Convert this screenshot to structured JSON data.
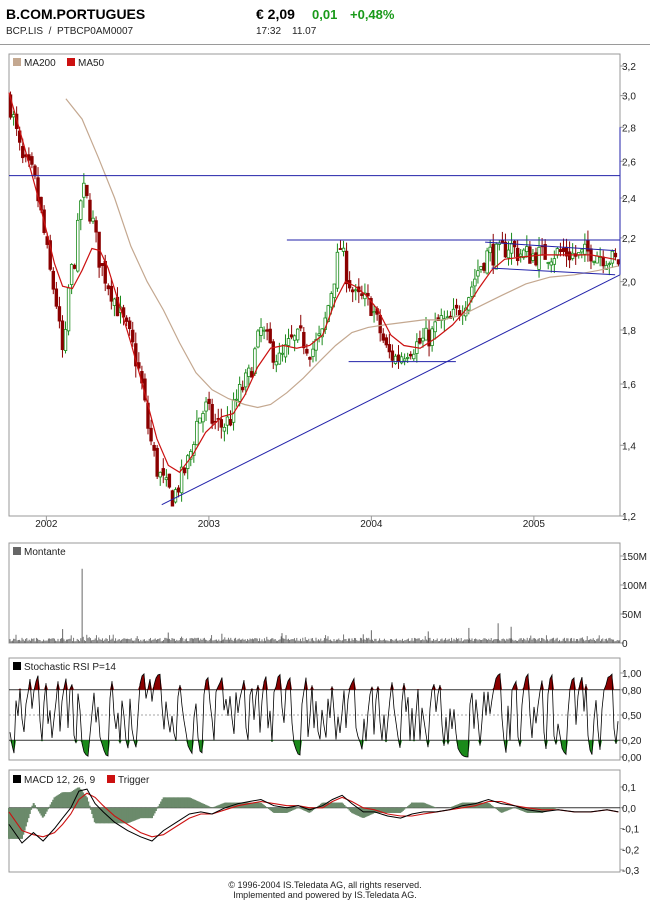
{
  "header": {
    "name": "B.COM.PORTUGUES",
    "ticker": "BCP.LIS",
    "separator": "/",
    "isin": "PTBCP0AM0007",
    "price": "€ 2,09",
    "change": "0,01",
    "change_pct": "+0,48%",
    "time": "17:32",
    "date": "11.07"
  },
  "colors": {
    "up_candle": "#1a8a1a",
    "down_candle": "#8b0000",
    "ma200": "#c4a890",
    "ma50": "#cc1111",
    "trendline": "#2222aa",
    "volume": "#666666",
    "rsi_overbought": "#8b0000",
    "rsi_oversold": "#1a8a1a",
    "macd": "#000000",
    "trigger": "#cc1111",
    "histogram": "#6b8a6b"
  },
  "footer": {
    "line1": "© 1996-2004 IS.Teledata AG, all rights reserved.",
    "line2": "Implemented and powered by IS.Teledata AG."
  },
  "chart_data": [
    {
      "id": "price",
      "type": "candlestick",
      "legend": [
        {
          "name": "MA200",
          "color": "#c4a890"
        },
        {
          "name": "MA50",
          "color": "#cc1111"
        }
      ],
      "x_ticks": [
        {
          "label": "2002",
          "t": 2002.0
        },
        {
          "label": "2003",
          "t": 2003.0
        },
        {
          "label": "2004",
          "t": 2004.0
        },
        {
          "label": "2005",
          "t": 2005.0
        }
      ],
      "x_range": [
        2001.77,
        2005.53
      ],
      "y_scale": "log",
      "ylim": [
        1.2,
        3.2
      ],
      "y_ticks": [
        "1,2",
        "1,4",
        "1,6",
        "1,8",
        "2,0",
        "2,2",
        "2,4",
        "2,6",
        "2,8",
        "3,0",
        "3,2"
      ],
      "close_path": [
        [
          2001.77,
          2.98
        ],
        [
          2001.85,
          2.6
        ],
        [
          2001.92,
          2.52
        ],
        [
          2001.97,
          2.3
        ],
        [
          2002.02,
          2.05
        ],
        [
          2002.06,
          1.92
        ],
        [
          2002.09,
          1.74
        ],
        [
          2002.11,
          1.68
        ],
        [
          2002.14,
          2.0
        ],
        [
          2002.18,
          2.12
        ],
        [
          2002.22,
          2.46
        ],
        [
          2002.28,
          2.3
        ],
        [
          2002.33,
          2.08
        ],
        [
          2002.4,
          1.96
        ],
        [
          2002.46,
          1.85
        ],
        [
          2002.52,
          1.76
        ],
        [
          2002.58,
          1.62
        ],
        [
          2002.63,
          1.44
        ],
        [
          2002.68,
          1.33
        ],
        [
          2002.73,
          1.28
        ],
        [
          2002.78,
          1.25
        ],
        [
          2002.83,
          1.3
        ],
        [
          2002.88,
          1.36
        ],
        [
          2002.93,
          1.48
        ],
        [
          2002.98,
          1.52
        ],
        [
          2003.03,
          1.47
        ],
        [
          2003.08,
          1.46
        ],
        [
          2003.13,
          1.48
        ],
        [
          2003.18,
          1.56
        ],
        [
          2003.25,
          1.63
        ],
        [
          2003.32,
          1.8
        ],
        [
          2003.38,
          1.73
        ],
        [
          2003.44,
          1.68
        ],
        [
          2003.5,
          1.75
        ],
        [
          2003.57,
          1.77
        ],
        [
          2003.63,
          1.72
        ],
        [
          2003.7,
          1.78
        ],
        [
          2003.77,
          2.02
        ],
        [
          2003.81,
          2.16
        ],
        [
          2003.85,
          2.03
        ],
        [
          2003.9,
          1.93
        ],
        [
          2003.95,
          1.92
        ],
        [
          2004.0,
          1.9
        ],
        [
          2004.05,
          1.8
        ],
        [
          2004.1,
          1.71
        ],
        [
          2004.16,
          1.69
        ],
        [
          2004.22,
          1.73
        ],
        [
          2004.3,
          1.75
        ],
        [
          2004.37,
          1.78
        ],
        [
          2004.42,
          1.84
        ],
        [
          2004.47,
          1.82
        ],
        [
          2004.53,
          1.87
        ],
        [
          2004.6,
          1.95
        ],
        [
          2004.66,
          2.06
        ],
        [
          2004.72,
          2.13
        ],
        [
          2004.78,
          2.12
        ],
        [
          2004.85,
          2.17
        ],
        [
          2004.9,
          2.13
        ],
        [
          2004.98,
          2.12
        ],
        [
          2005.05,
          2.12
        ],
        [
          2005.12,
          2.13
        ],
        [
          2005.2,
          2.13
        ],
        [
          2005.28,
          2.11
        ],
        [
          2005.35,
          2.14
        ],
        [
          2005.42,
          2.12
        ],
        [
          2005.5,
          2.09
        ]
      ],
      "ma50": [
        [
          2001.77,
          3.02
        ],
        [
          2001.86,
          2.7
        ],
        [
          2001.95,
          2.4
        ],
        [
          2002.05,
          2.08
        ],
        [
          2002.1,
          1.98
        ],
        [
          2002.16,
          1.97
        ],
        [
          2002.22,
          2.05
        ],
        [
          2002.28,
          2.15
        ],
        [
          2002.33,
          2.14
        ],
        [
          2002.38,
          2.06
        ],
        [
          2002.45,
          1.9
        ],
        [
          2002.52,
          1.75
        ],
        [
          2002.6,
          1.58
        ],
        [
          2002.68,
          1.42
        ],
        [
          2002.75,
          1.34
        ],
        [
          2002.82,
          1.32
        ],
        [
          2002.9,
          1.37
        ],
        [
          2002.98,
          1.44
        ],
        [
          2003.08,
          1.49
        ],
        [
          2003.15,
          1.5
        ],
        [
          2003.22,
          1.56
        ],
        [
          2003.3,
          1.66
        ],
        [
          2003.38,
          1.73
        ],
        [
          2003.46,
          1.74
        ],
        [
          2003.54,
          1.73
        ],
        [
          2003.62,
          1.74
        ],
        [
          2003.7,
          1.78
        ],
        [
          2003.78,
          1.92
        ],
        [
          2003.84,
          2.0
        ],
        [
          2003.9,
          1.98
        ],
        [
          2003.97,
          1.94
        ],
        [
          2004.04,
          1.88
        ],
        [
          2004.12,
          1.78
        ],
        [
          2004.2,
          1.74
        ],
        [
          2004.3,
          1.73
        ],
        [
          2004.4,
          1.77
        ],
        [
          2004.5,
          1.82
        ],
        [
          2004.58,
          1.88
        ],
        [
          2004.66,
          1.97
        ],
        [
          2004.74,
          2.05
        ],
        [
          2004.82,
          2.1
        ],
        [
          2004.92,
          2.11
        ],
        [
          2005.05,
          2.12
        ],
        [
          2005.2,
          2.12
        ],
        [
          2005.35,
          2.12
        ],
        [
          2005.5,
          2.1
        ]
      ],
      "ma200": [
        [
          2002.12,
          2.98
        ],
        [
          2002.22,
          2.85
        ],
        [
          2002.32,
          2.62
        ],
        [
          2002.42,
          2.4
        ],
        [
          2002.52,
          2.16
        ],
        [
          2002.62,
          2.0
        ],
        [
          2002.72,
          1.88
        ],
        [
          2002.82,
          1.75
        ],
        [
          2002.92,
          1.64
        ],
        [
          2003.02,
          1.58
        ],
        [
          2003.12,
          1.55
        ],
        [
          2003.22,
          1.53
        ],
        [
          2003.3,
          1.52
        ],
        [
          2003.38,
          1.53
        ],
        [
          2003.48,
          1.57
        ],
        [
          2003.58,
          1.62
        ],
        [
          2003.68,
          1.68
        ],
        [
          2003.78,
          1.74
        ],
        [
          2003.88,
          1.79
        ],
        [
          2003.98,
          1.81
        ],
        [
          2004.08,
          1.82
        ],
        [
          2004.2,
          1.83
        ],
        [
          2004.32,
          1.84
        ],
        [
          2004.44,
          1.84
        ],
        [
          2004.56,
          1.86
        ],
        [
          2004.68,
          1.9
        ],
        [
          2004.8,
          1.94
        ],
        [
          2004.95,
          1.99
        ],
        [
          2005.1,
          2.02
        ],
        [
          2005.25,
          2.03
        ],
        [
          2005.4,
          2.05
        ],
        [
          2005.52,
          2.07
        ]
      ],
      "lines": [
        {
          "from": [
            2001.77,
            2.52
          ],
          "to": [
            2005.53,
            2.52
          ]
        },
        {
          "from": [
            2003.48,
            2.19
          ],
          "to": [
            2005.53,
            2.19
          ]
        },
        {
          "from": [
            2002.71,
            1.23
          ],
          "to": [
            2005.53,
            2.03
          ]
        },
        {
          "from": [
            2003.86,
            1.68
          ],
          "to": [
            2004.52,
            1.68
          ]
        },
        {
          "from": [
            2004.7,
            2.18
          ],
          "to": [
            2005.5,
            2.14
          ]
        },
        {
          "from": [
            2004.74,
            2.06
          ],
          "to": [
            2005.5,
            2.03
          ]
        },
        {
          "from": [
            2005.53,
            2.03
          ],
          "to": [
            2005.53,
            2.8
          ]
        }
      ]
    },
    {
      "id": "volume",
      "type": "bar",
      "legend": [
        {
          "name": "Montante",
          "color": "#666666"
        }
      ],
      "ylim": [
        0,
        150
      ],
      "y_ticks": [
        "0",
        "50M",
        "100M",
        "150M"
      ],
      "baseline_range": [
        3,
        9
      ],
      "spikes": [
        [
          2002.1,
          24
        ],
        [
          2002.22,
          128
        ],
        [
          2002.75,
          18
        ],
        [
          2003.08,
          16
        ],
        [
          2003.45,
          17
        ],
        [
          2003.95,
          15
        ],
        [
          2004.0,
          22
        ],
        [
          2004.35,
          20
        ],
        [
          2004.6,
          26
        ],
        [
          2004.78,
          34
        ],
        [
          2004.86,
          28
        ]
      ]
    },
    {
      "id": "stochrsi",
      "type": "line",
      "legend": [
        {
          "name": "Stochastic RSI P=14",
          "color": "#000000"
        }
      ],
      "ylim": [
        0,
        1
      ],
      "y_ticks": [
        "0,00",
        "0,20",
        "0,50",
        "0,80",
        "1,00"
      ],
      "levels": [
        0.2,
        0.5,
        0.8
      ]
    },
    {
      "id": "macd",
      "type": "line",
      "legend": [
        {
          "name": "MACD 12, 26, 9",
          "color": "#000000"
        },
        {
          "name": "Trigger",
          "color": "#cc1111"
        }
      ],
      "ylim": [
        -0.3,
        0.1
      ],
      "y_ticks": [
        "-0,3",
        "-0,2",
        "-0,1",
        "0,0",
        "0,1"
      ],
      "macd": [
        [
          2001.77,
          -0.08
        ],
        [
          2001.85,
          -0.17
        ],
        [
          2001.92,
          -0.12
        ],
        [
          2001.98,
          -0.16
        ],
        [
          2002.05,
          -0.1
        ],
        [
          2002.1,
          -0.05
        ],
        [
          2002.15,
          0.0
        ],
        [
          2002.2,
          0.08
        ],
        [
          2002.25,
          0.09
        ],
        [
          2002.3,
          0.02
        ],
        [
          2002.35,
          -0.02
        ],
        [
          2002.42,
          -0.07
        ],
        [
          2002.5,
          -0.11
        ],
        [
          2002.58,
          -0.14
        ],
        [
          2002.65,
          -0.16
        ],
        [
          2002.72,
          -0.11
        ],
        [
          2002.8,
          -0.07
        ],
        [
          2002.88,
          -0.03
        ],
        [
          2002.95,
          -0.02
        ],
        [
          2003.02,
          -0.03
        ],
        [
          2003.1,
          0.0
        ],
        [
          2003.18,
          0.02
        ],
        [
          2003.25,
          0.03
        ],
        [
          2003.32,
          0.04
        ],
        [
          2003.4,
          0.01
        ],
        [
          2003.48,
          0.0
        ],
        [
          2003.55,
          0.01
        ],
        [
          2003.62,
          -0.01
        ],
        [
          2003.7,
          0.01
        ],
        [
          2003.76,
          0.04
        ],
        [
          2003.82,
          0.06
        ],
        [
          2003.88,
          0.02
        ],
        [
          2003.95,
          -0.02
        ],
        [
          2004.02,
          -0.02
        ],
        [
          2004.1,
          -0.04
        ],
        [
          2004.18,
          -0.05
        ],
        [
          2004.25,
          -0.03
        ],
        [
          2004.32,
          -0.02
        ],
        [
          2004.4,
          -0.02
        ],
        [
          2004.48,
          -0.01
        ],
        [
          2004.56,
          0.01
        ],
        [
          2004.64,
          0.02
        ],
        [
          2004.72,
          0.04
        ],
        [
          2004.8,
          0.02
        ],
        [
          2004.88,
          0.01
        ],
        [
          2004.96,
          -0.01
        ],
        [
          2005.05,
          -0.02
        ],
        [
          2005.15,
          -0.01
        ],
        [
          2005.25,
          -0.02
        ],
        [
          2005.35,
          -0.02
        ],
        [
          2005.45,
          -0.01
        ],
        [
          2005.52,
          -0.02
        ]
      ],
      "trigger": [
        [
          2001.77,
          -0.02
        ],
        [
          2001.85,
          -0.11
        ],
        [
          2001.92,
          -0.13
        ],
        [
          2001.98,
          -0.14
        ],
        [
          2002.05,
          -0.12
        ],
        [
          2002.1,
          -0.08
        ],
        [
          2002.15,
          -0.03
        ],
        [
          2002.2,
          0.04
        ],
        [
          2002.25,
          0.07
        ],
        [
          2002.3,
          0.05
        ],
        [
          2002.35,
          0.01
        ],
        [
          2002.42,
          -0.04
        ],
        [
          2002.5,
          -0.08
        ],
        [
          2002.58,
          -0.12
        ],
        [
          2002.65,
          -0.14
        ],
        [
          2002.72,
          -0.13
        ],
        [
          2002.8,
          -0.09
        ],
        [
          2002.88,
          -0.05
        ],
        [
          2002.95,
          -0.03
        ],
        [
          2003.02,
          -0.03
        ],
        [
          2003.1,
          -0.01
        ],
        [
          2003.18,
          0.01
        ],
        [
          2003.25,
          0.02
        ],
        [
          2003.32,
          0.03
        ],
        [
          2003.4,
          0.02
        ],
        [
          2003.48,
          0.01
        ],
        [
          2003.55,
          0.01
        ],
        [
          2003.62,
          0.0
        ],
        [
          2003.7,
          0.0
        ],
        [
          2003.76,
          0.03
        ],
        [
          2003.82,
          0.05
        ],
        [
          2003.88,
          0.03
        ],
        [
          2003.95,
          0.0
        ],
        [
          2004.02,
          -0.01
        ],
        [
          2004.1,
          -0.03
        ],
        [
          2004.18,
          -0.04
        ],
        [
          2004.25,
          -0.04
        ],
        [
          2004.32,
          -0.03
        ],
        [
          2004.4,
          -0.02
        ],
        [
          2004.48,
          -0.01
        ],
        [
          2004.56,
          0.0
        ],
        [
          2004.64,
          0.01
        ],
        [
          2004.72,
          0.03
        ],
        [
          2004.8,
          0.03
        ],
        [
          2004.88,
          0.01
        ],
        [
          2004.96,
          0.0
        ],
        [
          2005.05,
          -0.01
        ],
        [
          2005.15,
          -0.01
        ],
        [
          2005.25,
          -0.02
        ],
        [
          2005.35,
          -0.02
        ],
        [
          2005.45,
          -0.01
        ],
        [
          2005.52,
          -0.02
        ]
      ]
    }
  ]
}
